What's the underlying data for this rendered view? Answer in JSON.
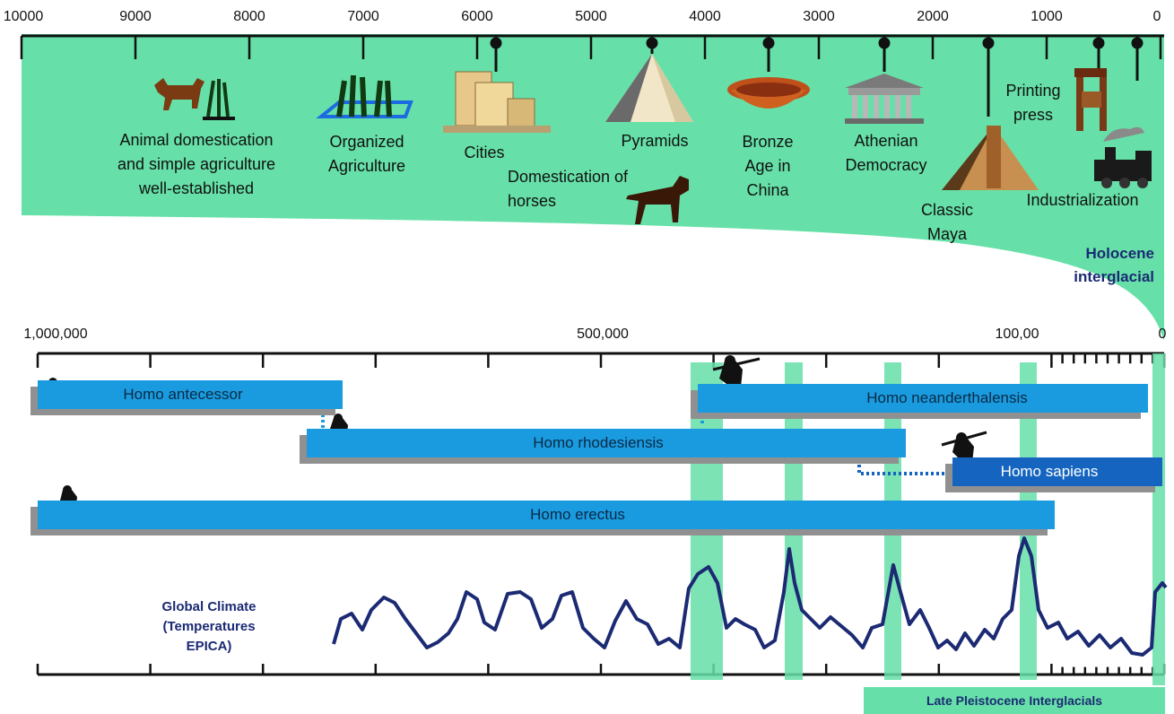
{
  "colors": {
    "holocene_green": "#66e0a8",
    "bar_blue": "#1a9be0",
    "bar_dark_blue": "#1565c0",
    "shadow_gray": "#909090",
    "climate_line": "#1b2a73",
    "text_dark": "#111111"
  },
  "top_axis": {
    "ticks": [
      "10000",
      "9000",
      "8000",
      "7000",
      "6000",
      "5000",
      "4000",
      "3000",
      "2000",
      "1000",
      "0"
    ]
  },
  "events": {
    "animal_domestication": "Animal domestication\nand simple agriculture\nwell-established",
    "organized_agriculture": "Organized\nAgriculture",
    "cities": "Cities",
    "pyramids": "Pyramids",
    "domestication_horses": "Domestication of\nhorses",
    "bronze_age_china": "Bronze\nAge in\nChina",
    "athenian_democracy": "Athenian\nDemocracy",
    "classic_maya": "Classic\nMaya",
    "printing_press": "Printing\npress",
    "industrialization": "Industrialization"
  },
  "holocene_label": "Holocene\ninterglacial",
  "bottom_axis": {
    "label_1m": "1,000,000",
    "label_500k": "500,000",
    "label_100k": "100,00",
    "label_0": "0"
  },
  "species": {
    "antecessor": "Homo antecessor",
    "neanderthalensis": "Homo neanderthalensis",
    "rhodesiensis": "Homo rhodesiensis",
    "sapiens": "Homo sapiens",
    "erectus": "Homo erectus"
  },
  "climate_label": "Global Climate\n(Temperatures\nEPICA)",
  "late_pleistocene_label": "Late Pleistocene Interglacials",
  "icons": [
    "dog-icon",
    "wheat-icon",
    "house-icon",
    "pyramid-icon",
    "horse-icon",
    "bowl-icon",
    "temple-icon",
    "maya-pyramid-icon",
    "printing-press-icon",
    "locomotive-icon",
    "hominid-icon"
  ]
}
